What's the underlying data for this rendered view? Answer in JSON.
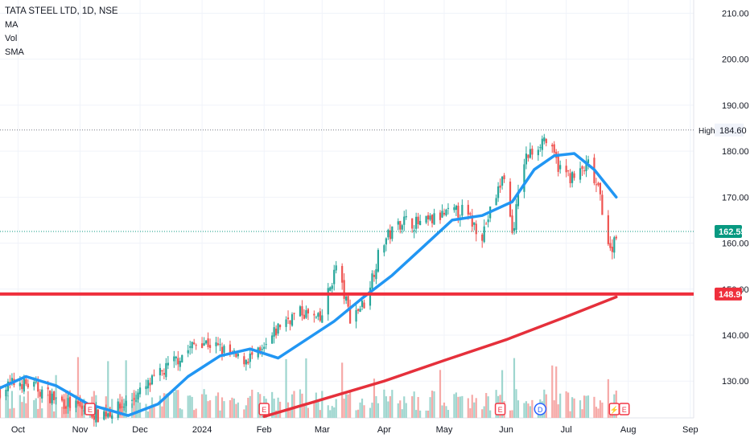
{
  "legend": {
    "title": "TATA STEEL LTD, 1D, NSE",
    "indicators": [
      "MA",
      "Vol",
      "SMA"
    ]
  },
  "colors": {
    "up": "#26a69a",
    "down": "#ef5350",
    "vol_up": "#9ed6cf",
    "vol_down": "#f6a9a7",
    "ma_line": "#2196f3",
    "sma_line": "#e5303b",
    "support_line": "#ef2f3c",
    "grid": "#f0f3fa",
    "axis_text": "#131722",
    "last_price_badge": "#089981",
    "support_badge": "#ef2f3c"
  },
  "chart_data": {
    "type": "candlestick",
    "ylim": [
      122,
      212
    ],
    "y_ticks": [
      130,
      140,
      150,
      160,
      170,
      180,
      190,
      200,
      210
    ],
    "y_tick_labels": [
      "130.00",
      "140.00",
      "150.00",
      "160.00",
      "170.00",
      "180.00",
      "190.00",
      "200.00",
      "210.00"
    ],
    "x_range": [
      "2023-09-22",
      "2024-09-22"
    ],
    "x_ticks": [
      {
        "date": "2023-10-01",
        "label": "Oct"
      },
      {
        "date": "2023-11-01",
        "label": "Nov"
      },
      {
        "date": "2023-12-01",
        "label": "Dec"
      },
      {
        "date": "2024-01-01",
        "label": "2024"
      },
      {
        "date": "2024-02-01",
        "label": "Feb"
      },
      {
        "date": "2024-03-01",
        "label": "Mar"
      },
      {
        "date": "2024-04-01",
        "label": "Apr"
      },
      {
        "date": "2024-05-01",
        "label": "May"
      },
      {
        "date": "2024-06-01",
        "label": "Jun"
      },
      {
        "date": "2024-07-01",
        "label": "Jul"
      },
      {
        "date": "2024-08-01",
        "label": "Aug"
      },
      {
        "date": "2024-09-01",
        "label": "Sep"
      }
    ],
    "price_path": [
      [
        "2023-09-22",
        128
      ],
      [
        "2023-10-01",
        130
      ],
      [
        "2023-10-10",
        128.5
      ],
      [
        "2023-10-20",
        126
      ],
      [
        "2023-10-30",
        124.5
      ],
      [
        "2023-11-10",
        122.6
      ],
      [
        "2023-11-20",
        124
      ],
      [
        "2023-11-30",
        127
      ],
      [
        "2023-12-10",
        131
      ],
      [
        "2023-12-20",
        135
      ],
      [
        "2023-12-31",
        139
      ],
      [
        "2024-01-10",
        137
      ],
      [
        "2024-01-20",
        134.5
      ],
      [
        "2024-01-31",
        136
      ],
      [
        "2024-02-10",
        143
      ],
      [
        "2024-02-20",
        145
      ],
      [
        "2024-02-29",
        143
      ],
      [
        "2024-03-08",
        155
      ],
      [
        "2024-03-15",
        144
      ],
      [
        "2024-03-22",
        147
      ],
      [
        "2024-03-31",
        160
      ],
      [
        "2024-04-10",
        165
      ],
      [
        "2024-04-20",
        164
      ],
      [
        "2024-04-30",
        166
      ],
      [
        "2024-05-10",
        167
      ],
      [
        "2024-05-20",
        162
      ],
      [
        "2024-05-31",
        175
      ],
      [
        "2024-06-04",
        162
      ],
      [
        "2024-06-10",
        178
      ],
      [
        "2024-06-20",
        183
      ],
      [
        "2024-06-28",
        176
      ],
      [
        "2024-07-05",
        174
      ],
      [
        "2024-07-12",
        177
      ],
      [
        "2024-07-18",
        170
      ],
      [
        "2024-07-23",
        158
      ],
      [
        "2024-07-26",
        162.55
      ]
    ],
    "high": {
      "label": "High",
      "value": 184.6,
      "date": "2024-06-17"
    },
    "last_price": 162.55,
    "support_level": 148.94,
    "ma_line": [
      [
        "2023-09-22",
        128.5
      ],
      [
        "2023-10-05",
        131
      ],
      [
        "2023-10-20",
        129
      ],
      [
        "2023-11-05",
        125
      ],
      [
        "2023-11-25",
        122.5
      ],
      [
        "2023-12-10",
        125
      ],
      [
        "2023-12-25",
        131
      ],
      [
        "2024-01-10",
        135.5
      ],
      [
        "2024-01-25",
        137
      ],
      [
        "2024-02-08",
        135
      ],
      [
        "2024-02-22",
        139
      ],
      [
        "2024-03-07",
        143
      ],
      [
        "2024-03-21",
        148
      ],
      [
        "2024-04-05",
        153
      ],
      [
        "2024-04-20",
        159
      ],
      [
        "2024-05-05",
        165
      ],
      [
        "2024-05-20",
        166
      ],
      [
        "2024-06-04",
        169
      ],
      [
        "2024-06-15",
        176
      ],
      [
        "2024-06-25",
        179
      ],
      [
        "2024-07-05",
        179.5
      ],
      [
        "2024-07-15",
        176
      ],
      [
        "2024-07-26",
        170
      ]
    ],
    "sma_line": [
      [
        "2024-02-01",
        122.3
      ],
      [
        "2024-03-01",
        126
      ],
      [
        "2024-04-01",
        130
      ],
      [
        "2024-05-01",
        134.5
      ],
      [
        "2024-06-01",
        139
      ],
      [
        "2024-07-01",
        144
      ],
      [
        "2024-07-26",
        148.3
      ]
    ],
    "events": [
      {
        "date": "2023-11-06",
        "label": "E"
      },
      {
        "date": "2024-02-01",
        "label": "E"
      },
      {
        "date": "2024-05-29",
        "label": "E"
      },
      {
        "date": "2024-06-18",
        "label": "D"
      },
      {
        "date": "2024-07-25",
        "label": "⚡"
      },
      {
        "date": "2024-07-30",
        "label": "E"
      }
    ]
  }
}
